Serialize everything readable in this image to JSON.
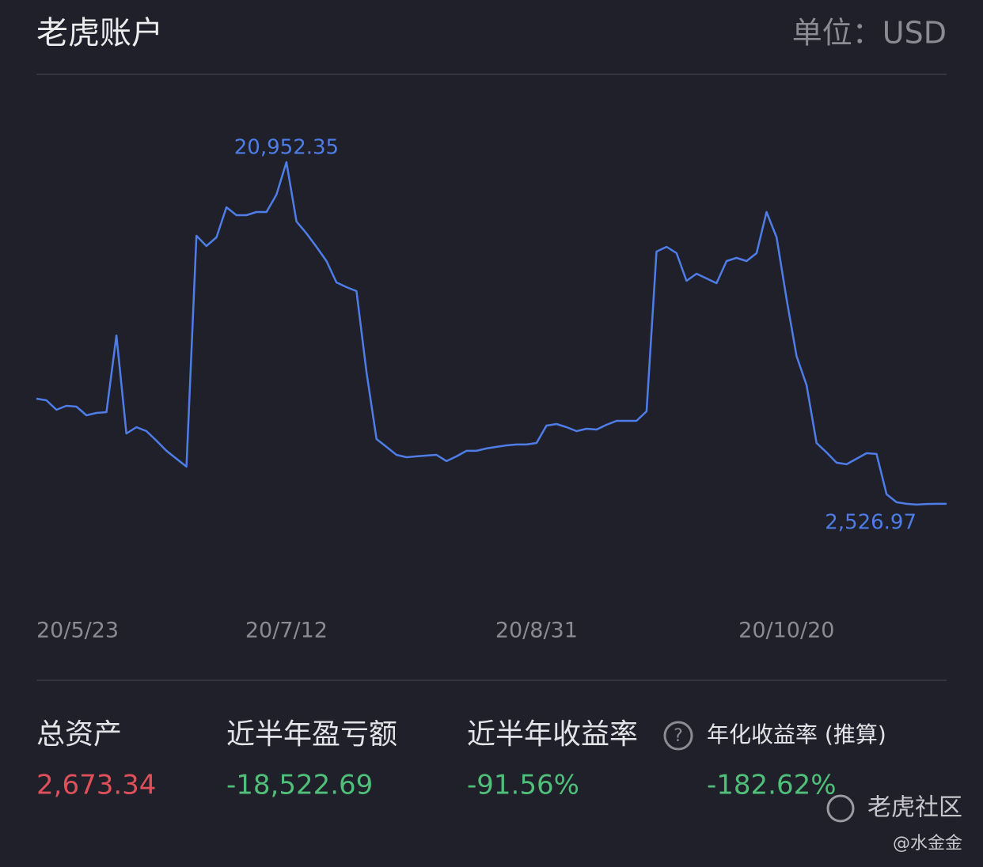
{
  "header": {
    "title": "老虎账户",
    "unit": "单位：USD"
  },
  "chart_data": {
    "type": "line",
    "color": "#4f7de8",
    "categories": [
      "20/5/23",
      null,
      null,
      null,
      null,
      null,
      null,
      null,
      null,
      null,
      null,
      null,
      null,
      null,
      null,
      null,
      null,
      null,
      null,
      null,
      null,
      null,
      null,
      null,
      null,
      "20/7/12",
      null,
      null,
      null,
      null,
      null,
      null,
      null,
      null,
      null,
      null,
      null,
      null,
      null,
      null,
      null,
      null,
      null,
      null,
      null,
      null,
      null,
      null,
      null,
      null,
      "20/8/31",
      null,
      null,
      null,
      null,
      null,
      null,
      null,
      null,
      null,
      null,
      null,
      null,
      null,
      null,
      null,
      null,
      null,
      null,
      null,
      null,
      null,
      null,
      null,
      null,
      "20/10/20",
      null,
      null,
      null,
      null,
      null,
      null,
      null,
      null,
      null,
      null,
      null,
      null,
      null,
      null,
      null,
      null
    ],
    "values": [
      8199,
      8114,
      7602,
      7816,
      7773,
      7304,
      7432,
      7474,
      11611,
      6323,
      6664,
      6451,
      5939,
      5385,
      4958,
      4532,
      16985,
      16431,
      16900,
      18521,
      18094,
      18094,
      18265,
      18265,
      19203,
      20952.35,
      17753,
      17113,
      16388,
      15621,
      14469,
      14213,
      14000,
      9650,
      6024,
      5598,
      5171,
      5043,
      5086,
      5129,
      5171,
      4830,
      5086,
      5385,
      5385,
      5513,
      5598,
      5683,
      5726,
      5726,
      5811,
      6749,
      6835,
      6664,
      6451,
      6579,
      6536,
      6792,
      7005,
      7005,
      7005,
      7517,
      16132,
      16388,
      16047,
      14554,
      14938,
      14682,
      14426,
      15621,
      15791,
      15621,
      16047,
      18265,
      16900,
      13573,
      10503,
      8925,
      5811,
      5299,
      4745,
      4660,
      4958,
      5257,
      5214,
      3039,
      2612,
      2527,
      2484,
      2520,
      2530,
      2526.97
    ],
    "value_labels": [
      null,
      null,
      null,
      null,
      null,
      null,
      null,
      null,
      null,
      null,
      null,
      null,
      null,
      null,
      null,
      null,
      null,
      null,
      null,
      null,
      null,
      null,
      null,
      null,
      null,
      "20,952.35",
      null,
      null,
      null,
      null,
      null,
      null,
      null,
      null,
      null,
      null,
      null,
      null,
      null,
      null,
      null,
      null,
      null,
      null,
      null,
      null,
      null,
      null,
      null,
      null,
      null,
      null,
      null,
      null,
      null,
      null,
      null,
      null,
      null,
      null,
      null,
      null,
      null,
      null,
      null,
      null,
      null,
      null,
      null,
      null,
      null,
      null,
      null,
      null,
      null,
      null,
      null,
      null,
      null,
      null,
      null,
      null,
      null,
      null,
      null,
      null,
      null,
      null,
      null,
      null,
      null,
      "2,526.97"
    ],
    "ylim": [
      -1870,
      24580
    ]
  },
  "stats": [
    {
      "label": "总资产",
      "value": "2,673.34"
    },
    {
      "label": "近半年盈亏额",
      "value": "-18,522.69"
    },
    {
      "label": "近半年收益率",
      "value": "-91.56%"
    },
    {
      "label": "年化收益率 (推算)",
      "value": "-182.62%"
    }
  ],
  "watermark": {
    "brand": "老虎社区",
    "author": "@水金金"
  }
}
